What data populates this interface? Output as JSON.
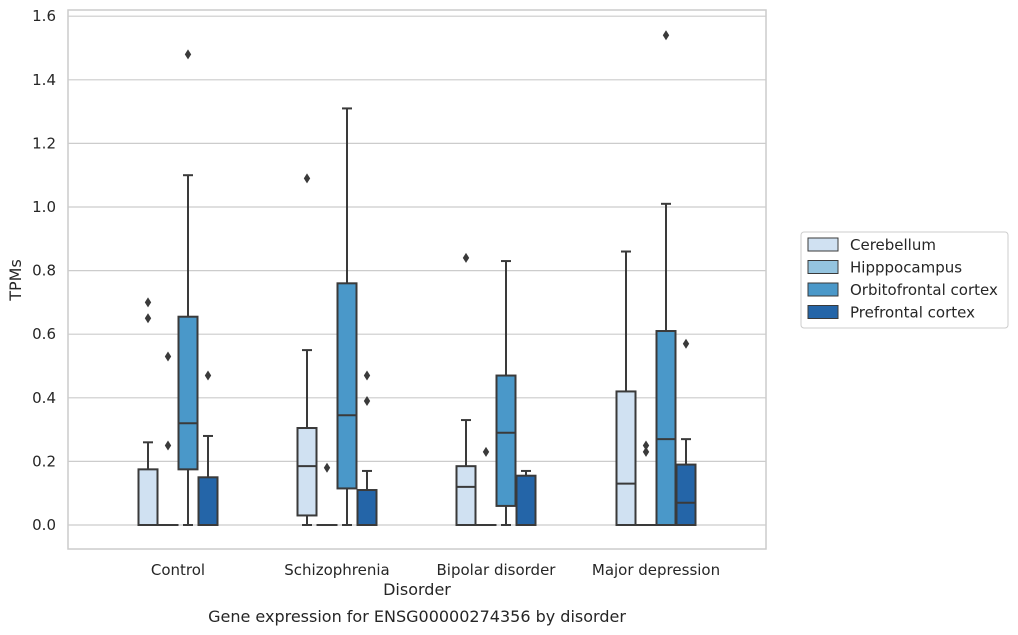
{
  "chart_data": {
    "type": "boxplot",
    "caption": "Gene expression for ENSG00000274356 by disorder",
    "xlabel": "Disorder",
    "ylabel": "TPMs",
    "ylim": [
      -0.075,
      1.62
    ],
    "yticks": [
      0.0,
      0.2,
      0.4,
      0.6,
      0.8,
      1.0,
      1.2,
      1.4,
      1.6
    ],
    "ytick_labels": [
      "0.0",
      "0.2",
      "0.4",
      "0.6",
      "0.8",
      "1.0",
      "1.2",
      "1.4",
      "1.6"
    ],
    "grid": "horizontal",
    "legend_position": "right",
    "categories": [
      "Control",
      "Schizophrenia",
      "Bipolar disorder",
      "Major depression"
    ],
    "series": [
      {
        "name": "Cerebellum",
        "color": "#d0e1f2",
        "boxes": [
          {
            "min": 0.0,
            "q1": 0.0,
            "median": 0.0,
            "q3": 0.175,
            "max": 0.26,
            "outliers": [
              0.65,
              0.7
            ]
          },
          {
            "min": 0.0,
            "q1": 0.03,
            "median": 0.185,
            "q3": 0.305,
            "max": 0.55,
            "outliers": [
              1.09
            ]
          },
          {
            "min": 0.0,
            "q1": 0.0,
            "median": 0.12,
            "q3": 0.185,
            "max": 0.33,
            "outliers": [
              0.84
            ]
          },
          {
            "min": 0.0,
            "q1": 0.0,
            "median": 0.13,
            "q3": 0.42,
            "max": 0.86,
            "outliers": []
          }
        ]
      },
      {
        "name": "Hipppocampus",
        "color": "#94c4df",
        "boxes": [
          {
            "min": 0.0,
            "q1": 0.0,
            "median": 0.0,
            "q3": 0.0,
            "max": 0.0,
            "outliers": [
              0.25,
              0.53
            ]
          },
          {
            "min": 0.0,
            "q1": 0.0,
            "median": 0.0,
            "q3": 0.0,
            "max": 0.0,
            "outliers": [
              0.18
            ]
          },
          {
            "min": 0.0,
            "q1": 0.0,
            "median": 0.0,
            "q3": 0.0,
            "max": 0.0,
            "outliers": [
              0.23
            ]
          },
          {
            "min": 0.0,
            "q1": 0.0,
            "median": 0.0,
            "q3": 0.0,
            "max": 0.0,
            "outliers": [
              0.23,
              0.25
            ]
          }
        ]
      },
      {
        "name": "Orbitofrontal cortex",
        "color": "#4a98c9",
        "boxes": [
          {
            "min": 0.0,
            "q1": 0.175,
            "median": 0.32,
            "q3": 0.655,
            "max": 1.1,
            "outliers": [
              1.48
            ]
          },
          {
            "min": 0.0,
            "q1": 0.115,
            "median": 0.345,
            "q3": 0.76,
            "max": 1.31,
            "outliers": []
          },
          {
            "min": 0.0,
            "q1": 0.06,
            "median": 0.29,
            "q3": 0.47,
            "max": 0.83,
            "outliers": []
          },
          {
            "min": 0.0,
            "q1": 0.0,
            "median": 0.27,
            "q3": 0.61,
            "max": 1.01,
            "outliers": [
              1.54
            ]
          }
        ]
      },
      {
        "name": "Prefrontal cortex",
        "color": "#2465a8",
        "boxes": [
          {
            "min": 0.0,
            "q1": 0.0,
            "median": 0.0,
            "q3": 0.15,
            "max": 0.28,
            "outliers": [
              0.47
            ]
          },
          {
            "min": 0.0,
            "q1": 0.0,
            "median": 0.0,
            "q3": 0.11,
            "max": 0.17,
            "outliers": [
              0.39,
              0.47
            ]
          },
          {
            "min": 0.0,
            "q1": 0.0,
            "median": 0.0,
            "q3": 0.155,
            "max": 0.17,
            "outliers": []
          },
          {
            "min": 0.0,
            "q1": 0.0,
            "median": 0.07,
            "q3": 0.19,
            "max": 0.27,
            "outliers": [
              0.57
            ]
          }
        ]
      }
    ],
    "colors": {
      "grid": "#cccccc",
      "frame": "#cccccc",
      "stroke": "#3a3a3a"
    }
  }
}
